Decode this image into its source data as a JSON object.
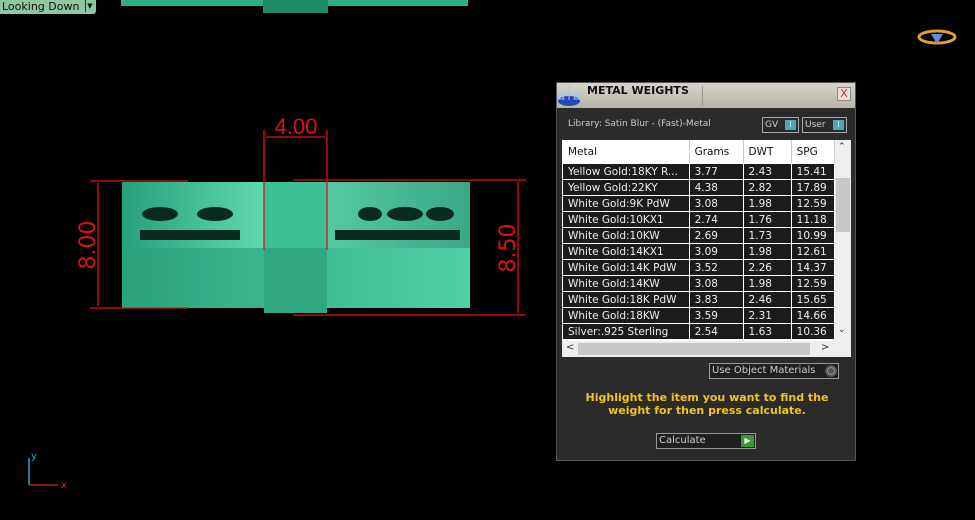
{
  "viewport": {
    "view_label": "Looking Down",
    "dimensions": [
      "4.00",
      "8.00",
      "8.50"
    ],
    "axis_labels": {
      "x": "x",
      "y": "y"
    },
    "model_color": "#3fbf8f",
    "dimension_color": "#e01010"
  },
  "panel": {
    "title": "METAL WEIGHTS",
    "close_label": "X",
    "library_label": "Library: Satin Blur - (Fast)-Metal",
    "toggles": [
      {
        "label": "GV",
        "state": "I"
      },
      {
        "label": "User",
        "state": "I"
      }
    ],
    "columns": [
      "Metal",
      "Grams",
      "DWT",
      "SPG"
    ],
    "rows": [
      [
        "Yellow Gold:18KY R...",
        "3.77",
        "2.43",
        "15.41"
      ],
      [
        "Yellow Gold:22KY",
        "4.38",
        "2.82",
        "17.89"
      ],
      [
        "White Gold:9K PdW",
        "3.08",
        "1.98",
        "12.59"
      ],
      [
        "White Gold:10KX1",
        "2.74",
        "1.76",
        "11.18"
      ],
      [
        "White Gold:10KW",
        "2.69",
        "1.73",
        "10.99"
      ],
      [
        "White Gold:14KX1",
        "3.09",
        "1.98",
        "12.61"
      ],
      [
        "White Gold:14K PdW",
        "3.52",
        "2.26",
        "14.37"
      ],
      [
        "White Gold:14KW",
        "3.08",
        "1.98",
        "12.59"
      ],
      [
        "White Gold:18K PdW",
        "3.83",
        "2.46",
        "15.65"
      ],
      [
        "White Gold:18KW",
        "3.59",
        "2.31",
        "14.66"
      ],
      [
        "Silver:.925 Sterling",
        "2.54",
        "1.63",
        "10.36"
      ]
    ],
    "use_object_materials_label": "Use Object Materials",
    "message": "Highlight the item you want to find the weight for then press calculate.",
    "calculate_label": "Calculate",
    "message_color": "#f0c419"
  }
}
